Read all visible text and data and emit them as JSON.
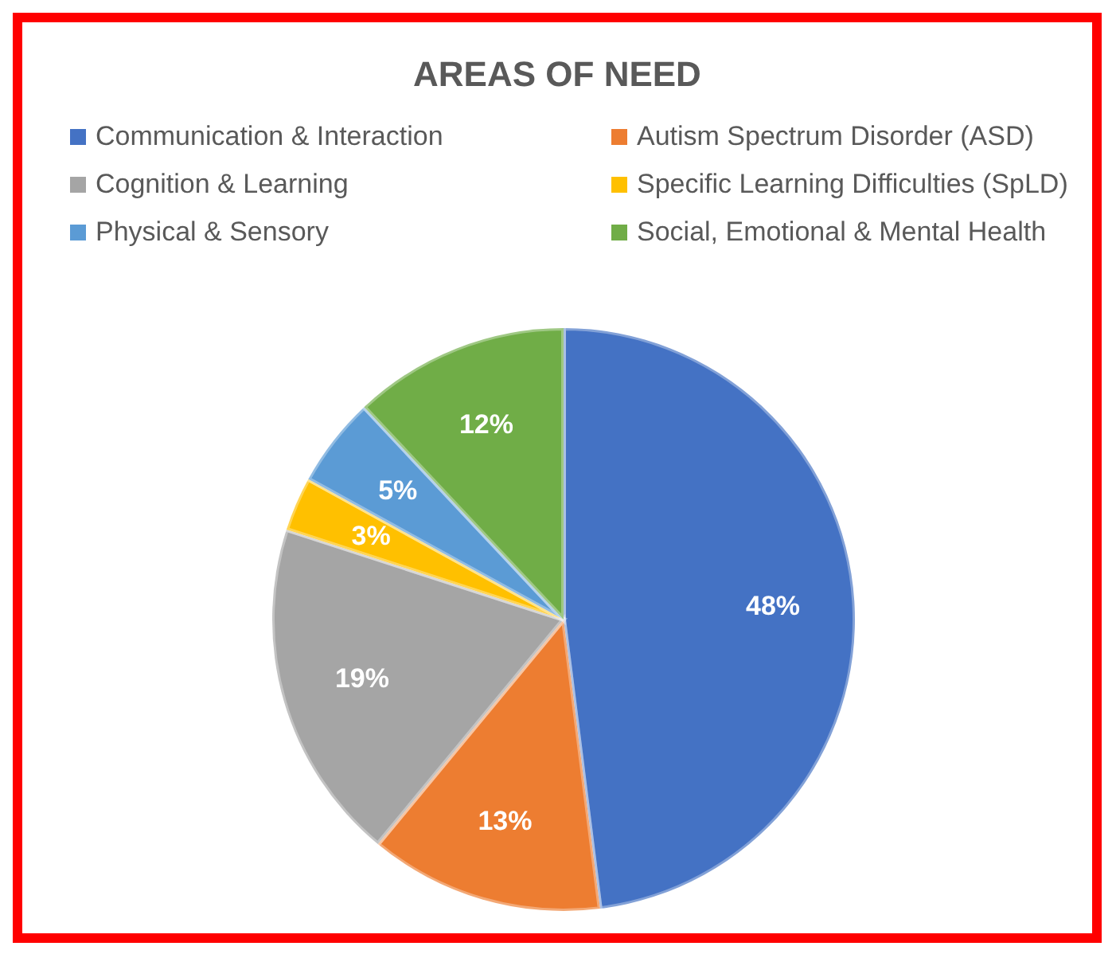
{
  "chart_data": {
    "type": "pie",
    "title": "AREAS OF NEED",
    "categories": [
      "Communication & Interaction",
      "Autism Spectrum Disorder (ASD)",
      "Cognition & Learning",
      "Specific Learning Difficulties (SpLD)",
      "Physical & Sensory",
      "Social, Emotional & Mental Health"
    ],
    "values": [
      48,
      13,
      19,
      3,
      5,
      12
    ],
    "colors": [
      "#4472c4",
      "#ed7d31",
      "#a5a5a5",
      "#ffc000",
      "#5b9bd5",
      "#70ad47"
    ],
    "value_labels": [
      "48%",
      "13%",
      "19%",
      "3%",
      "5%",
      "12%"
    ],
    "legend": "top"
  }
}
